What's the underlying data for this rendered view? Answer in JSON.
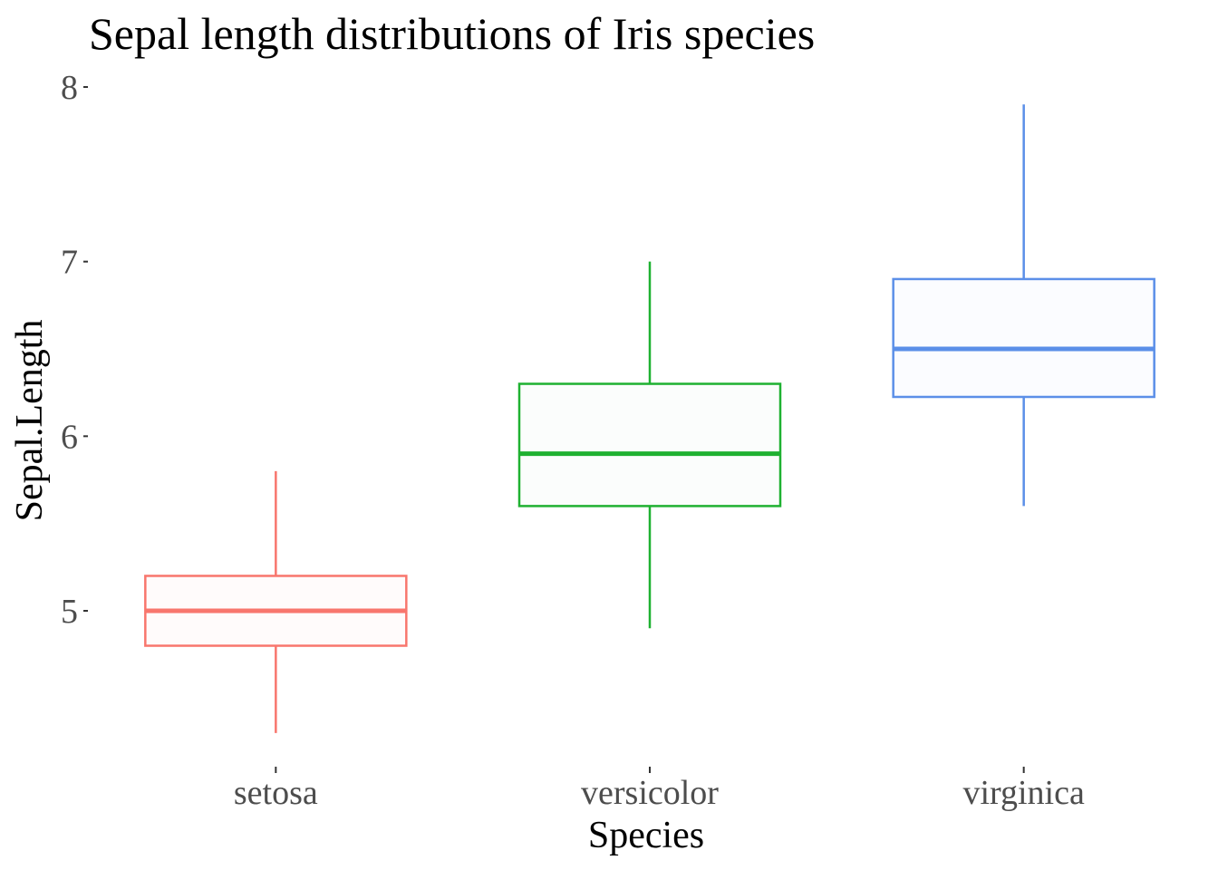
{
  "chart_data": {
    "type": "boxplot",
    "title": "Sepal length distributions of Iris species",
    "xlabel": "Species",
    "ylabel": "Sepal.Length",
    "categories": [
      "setosa",
      "versicolor",
      "virginica"
    ],
    "ylim": [
      4.1,
      8.05
    ],
    "yticks": [
      5,
      6,
      7,
      8
    ],
    "ytick_labels": [
      "5",
      "6",
      "7",
      "8"
    ],
    "grid": false,
    "legend": "none",
    "boxes": [
      {
        "category": "setosa",
        "min": 4.3,
        "q1": 4.8,
        "median": 5.0,
        "q3": 5.2,
        "max": 5.8,
        "color": "#f8766d",
        "fill": "#fffbfb"
      },
      {
        "category": "versicolor",
        "min": 4.9,
        "q1": 5.6,
        "median": 5.9,
        "q3": 6.3,
        "max": 7.0,
        "color": "#1fb131",
        "fill": "#fbfdfc"
      },
      {
        "category": "virginica",
        "min": 5.6,
        "q1": 6.225,
        "median": 6.5,
        "q3": 6.9,
        "max": 7.9,
        "color": "#5b8fe8",
        "fill": "#fbfcff"
      }
    ]
  }
}
